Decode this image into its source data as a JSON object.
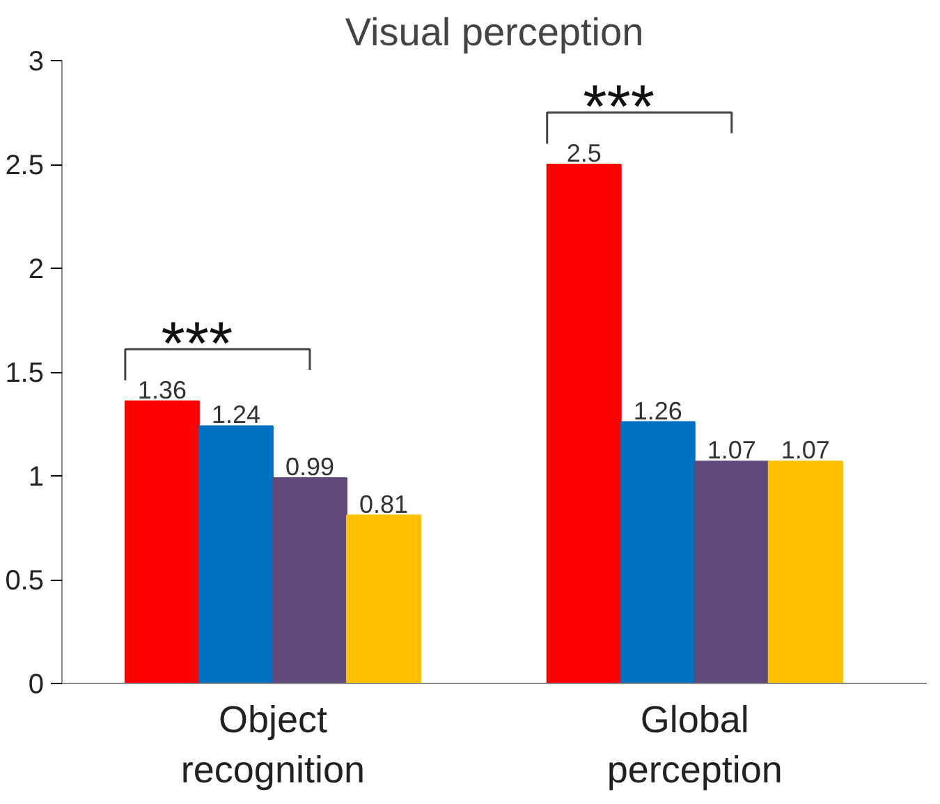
{
  "chart_data": {
    "type": "bar",
    "title": "Visual perception",
    "categories": [
      "Object recognition",
      "Global perception"
    ],
    "series": [
      {
        "color": "#ff0000",
        "values": [
          1.36,
          2.5
        ]
      },
      {
        "color": "#0070c0",
        "values": [
          1.24,
          1.26
        ]
      },
      {
        "color": "#604a7b",
        "values": [
          0.99,
          1.07
        ]
      },
      {
        "color": "#ffc000",
        "values": [
          0.81,
          1.07
        ]
      }
    ],
    "ylim": [
      0,
      3
    ],
    "yticks": [
      0,
      0.5,
      1,
      1.5,
      2,
      2.5,
      3
    ],
    "data_labels": true,
    "grid": false,
    "annotations": [
      "***",
      "***"
    ]
  }
}
